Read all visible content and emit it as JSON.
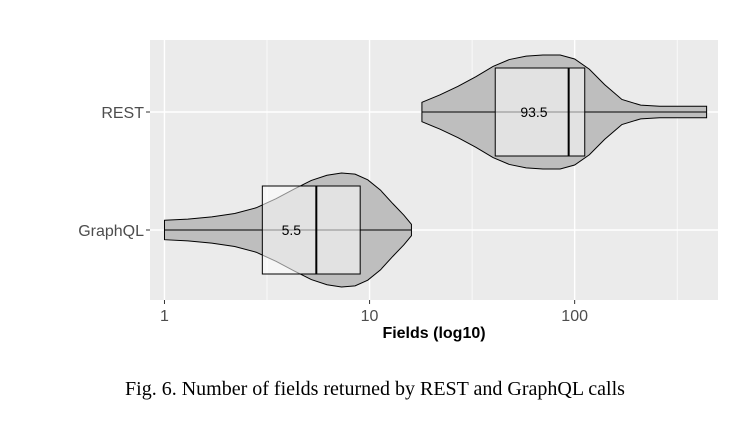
{
  "caption": "Fig. 6.  Number of fields returned by REST and GraphQL calls",
  "chart_data": {
    "type": "violin",
    "xlabel": "Fields (log10)",
    "ylabel": "",
    "x_scale": "log10",
    "xlim": [
      0.85,
      500
    ],
    "x_ticks": [
      1,
      10,
      100
    ],
    "x_tick_labels": [
      "1",
      "10",
      "100"
    ],
    "grid": true,
    "categories": [
      "REST",
      "GraphQL"
    ],
    "series": [
      {
        "category": "REST",
        "min": 18,
        "max": 440,
        "q1": 41,
        "median": 93.5,
        "q3": 112,
        "median_label": "93.5",
        "density": [
          [
            18,
            0.17
          ],
          [
            22,
            0.3
          ],
          [
            27,
            0.45
          ],
          [
            33,
            0.62
          ],
          [
            40,
            0.8
          ],
          [
            48,
            0.92
          ],
          [
            58,
            0.98
          ],
          [
            70,
            1.0
          ],
          [
            85,
            1.0
          ],
          [
            100,
            0.93
          ],
          [
            118,
            0.75
          ],
          [
            140,
            0.48
          ],
          [
            170,
            0.22
          ],
          [
            210,
            0.12
          ],
          [
            260,
            0.1
          ],
          [
            330,
            0.1
          ],
          [
            400,
            0.1
          ],
          [
            440,
            0.1
          ]
        ]
      },
      {
        "category": "GraphQL",
        "min": 1,
        "max": 16,
        "q1": 3,
        "median": 5.5,
        "q3": 9,
        "median_label": "5.5",
        "density": [
          [
            1,
            0.17
          ],
          [
            1.3,
            0.19
          ],
          [
            1.7,
            0.23
          ],
          [
            2.2,
            0.29
          ],
          [
            2.8,
            0.39
          ],
          [
            3.5,
            0.55
          ],
          [
            4.3,
            0.72
          ],
          [
            5.2,
            0.87
          ],
          [
            6.2,
            0.96
          ],
          [
            7.3,
            1.0
          ],
          [
            8.5,
            0.98
          ],
          [
            9.8,
            0.88
          ],
          [
            11.3,
            0.7
          ],
          [
            13,
            0.46
          ],
          [
            14.7,
            0.26
          ],
          [
            16,
            0.1
          ]
        ]
      }
    ]
  }
}
